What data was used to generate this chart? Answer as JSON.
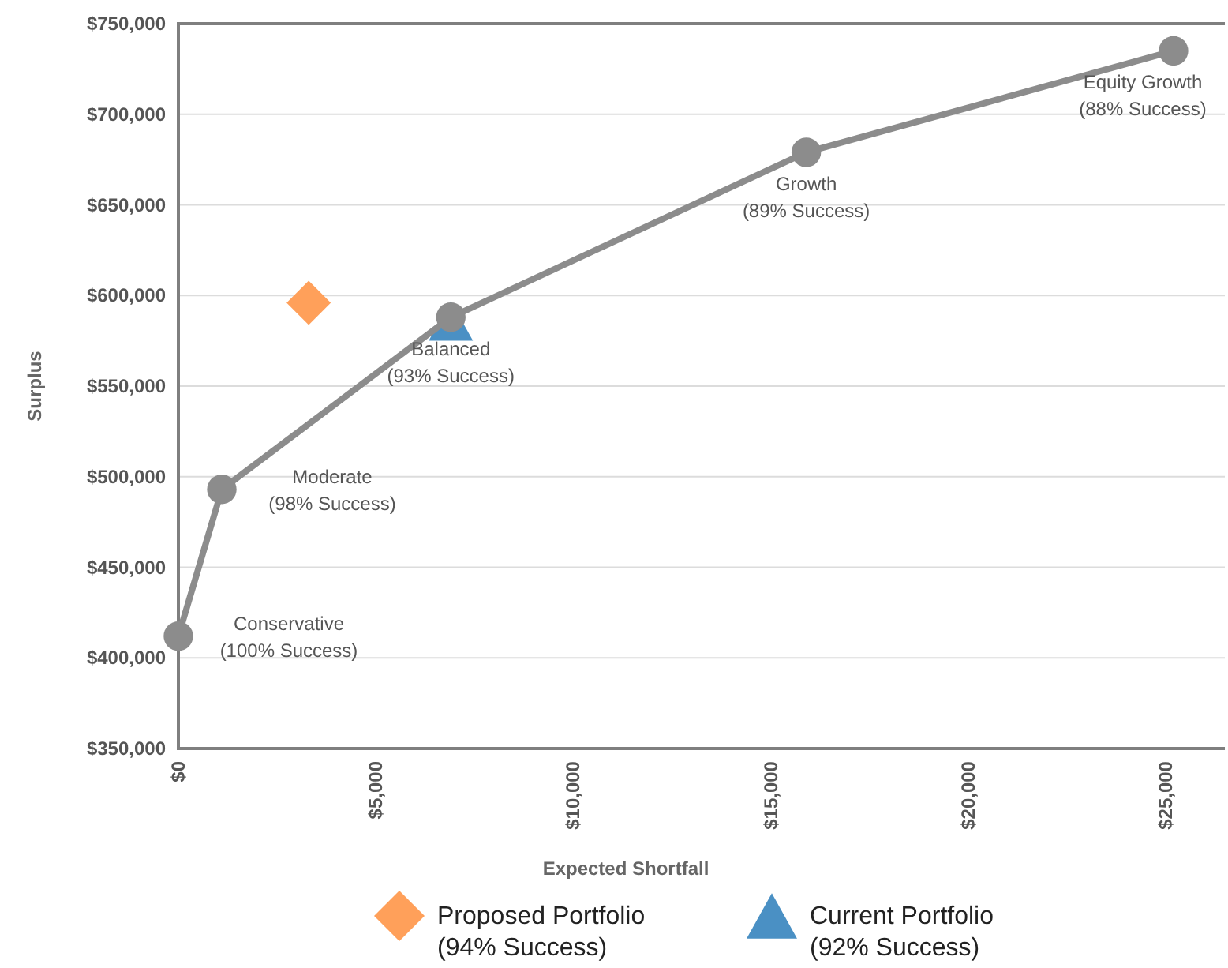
{
  "chart_data": {
    "type": "line",
    "xlabel": "Expected Shortfall",
    "ylabel": "Surplus",
    "xlim": [
      0,
      26500
    ],
    "xticks": [
      {
        "value": 0,
        "label": "$0"
      },
      {
        "value": 5000,
        "label": "$5,000"
      },
      {
        "value": 10000,
        "label": "$10,000"
      },
      {
        "value": 15000,
        "label": "$15,000"
      },
      {
        "value": 20000,
        "label": "$20,000"
      },
      {
        "value": 25000,
        "label": "$25,000"
      }
    ],
    "ylim": [
      350000,
      750000
    ],
    "yticks": [
      {
        "value": 350000,
        "label": "$350,000"
      },
      {
        "value": 400000,
        "label": "$400,000"
      },
      {
        "value": 450000,
        "label": "$450,000"
      },
      {
        "value": 500000,
        "label": "$500,000"
      },
      {
        "value": 550000,
        "label": "$550,000"
      },
      {
        "value": 600000,
        "label": "$600,000"
      },
      {
        "value": 650000,
        "label": "$650,000"
      },
      {
        "value": 700000,
        "label": "$700,000"
      },
      {
        "value": 750000,
        "label": "$750,000"
      }
    ],
    "grid": "y",
    "legend": "bottom",
    "line_style": "solid",
    "series": [
      {
        "color": "#8c8c8c",
        "marker": "circle",
        "x": [
          0,
          1100,
          6900,
          15900,
          25200
        ],
        "values": [
          412000,
          493000,
          588000,
          679000,
          735000
        ]
      },
      {
        "type": "scatter",
        "name": "Proposed Portfolio (94% Success)",
        "color": "#ffa05a",
        "marker": "diamond",
        "x": [
          3300
        ],
        "values": [
          596000
        ]
      },
      {
        "type": "scatter",
        "name": "Current Portfolio (92% Success)",
        "color": "#4a90c4",
        "marker": "triangle",
        "x": [
          6900
        ],
        "values": [
          586000
        ]
      }
    ],
    "annotations": [
      {
        "text": "Conservative (100% Success)",
        "x": 0,
        "y": 412000
      },
      {
        "text": "Moderate (98% Success)",
        "x": 1100,
        "y": 493000
      },
      {
        "text": "Balanced (93% Success)",
        "x": 6900,
        "y": 588000
      },
      {
        "text": "Growth (89% Success)",
        "x": 15900,
        "y": 679000
      },
      {
        "text": "Equity Growth (88% Success)",
        "x": 25200,
        "y": 735000
      }
    ]
  }
}
